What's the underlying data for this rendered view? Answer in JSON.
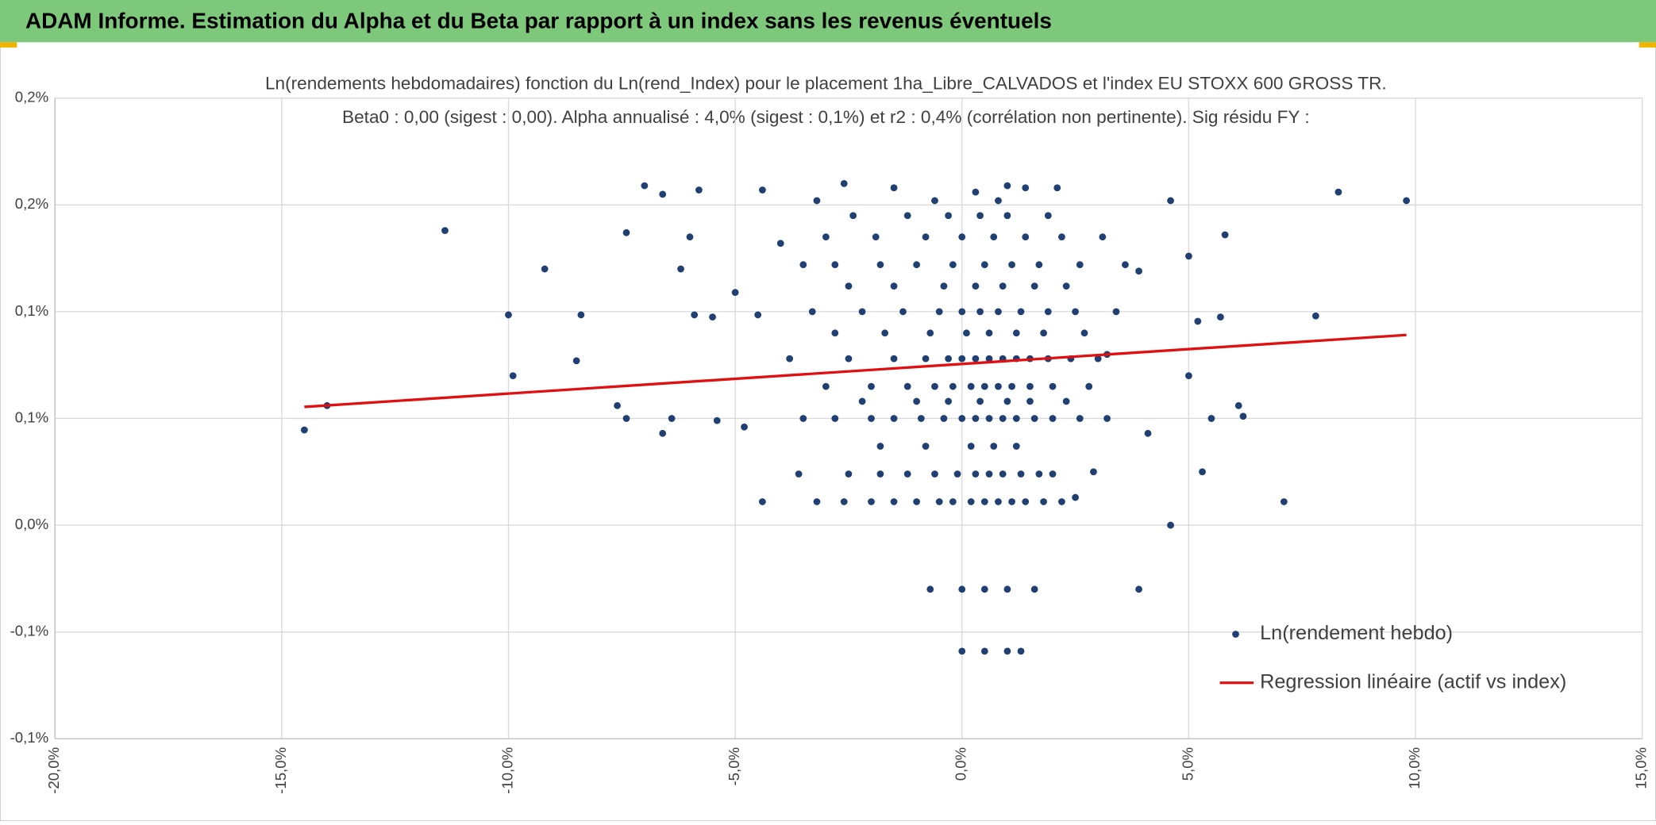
{
  "header": {
    "title": "ADAM Informe. Estimation du Alpha et du Beta par rapport à un index sans les revenus éventuels"
  },
  "chart_data": {
    "type": "scatter",
    "title": "Ln(rendements hebdomadaires) fonction du Ln(rend_Index) pour le placement 1ha_Libre_CALVADOS et l'index EU STOXX 600 GROSS TR.",
    "subtitle": "Beta0 : 0,00 (sigest : 0,00). Alpha annualisé : 4,0% (sigest : 0,1%) et r2 : 0,4% (corrélation non pertinente). Sig résidu FY :",
    "xlim": [
      -20,
      15
    ],
    "xticks": [
      {
        "value": -20,
        "label": "-20,0%"
      },
      {
        "value": -15,
        "label": "-15,0%"
      },
      {
        "value": -10,
        "label": "-10,0%"
      },
      {
        "value": -5,
        "label": "-5,0%"
      },
      {
        "value": 0,
        "label": "0,0%"
      },
      {
        "value": 5,
        "label": "5,0%"
      },
      {
        "value": 10,
        "label": "10,0%"
      },
      {
        "value": 15,
        "label": "15,0%"
      }
    ],
    "ylim": [
      -0.1,
      0.2
    ],
    "yticks": [
      {
        "value": -0.1,
        "label": "-0,1%"
      },
      {
        "value": -0.05,
        "label": "-0,1%"
      },
      {
        "value": 0,
        "label": "0,0%"
      },
      {
        "value": 0.05,
        "label": "0,1%"
      },
      {
        "value": 0.1,
        "label": "0,1%"
      },
      {
        "value": 0.15,
        "label": "0,2%"
      },
      {
        "value": 0.2,
        "label": "0,2%"
      }
    ],
    "grid": true,
    "legend": "right",
    "series": [
      {
        "name": "Ln(rendement hebdo)",
        "color": "#203f73",
        "style": "marker",
        "x": [
          -14.5,
          -14.0,
          -11.4,
          -10.0,
          -9.9,
          -9.2,
          -8.4,
          -8.5,
          -7.6,
          -7.4,
          -7.4,
          -7.0,
          -6.6,
          -6.6,
          -6.4,
          -6.2,
          -6.0,
          -5.9,
          -5.8,
          -5.5,
          -5.4,
          -5.0,
          -4.8,
          -4.5,
          -4.4,
          -4.4,
          -4.0,
          -3.6,
          -3.2,
          -2.6,
          -2.6,
          -1.5,
          -0.7,
          0.0,
          0.5,
          1.0,
          1.6,
          0.0,
          0.5,
          1.0,
          1.3,
          1.4,
          2.1,
          1.0,
          0.3,
          3.9,
          4.6,
          4.6,
          5.0,
          5.0,
          5.2,
          5.3,
          5.5,
          5.7,
          5.8,
          6.1,
          6.2,
          7.1,
          7.8,
          8.3,
          9.8,
          3.9,
          4.1,
          3.2,
          2.5,
          2.9,
          -2.0,
          -1.5,
          -1.0,
          -0.5,
          -0.2,
          0.2,
          0.5,
          0.8,
          1.1,
          1.4,
          1.8,
          2.2,
          -2.5,
          -1.8,
          -1.2,
          -0.6,
          -0.1,
          0.3,
          0.6,
          0.9,
          1.3,
          1.7,
          2.0,
          -1.8,
          -0.8,
          0.2,
          0.7,
          1.2,
          -3.5,
          -2.8,
          -2.0,
          -1.5,
          -0.9,
          -0.4,
          0.0,
          0.3,
          0.6,
          0.9,
          1.2,
          1.6,
          2.0,
          2.6,
          3.2,
          -2.2,
          -1.0,
          -0.3,
          0.4,
          1.0,
          1.5,
          2.3,
          -3.0,
          -2.0,
          -1.2,
          -0.6,
          -0.2,
          0.2,
          0.5,
          0.8,
          1.1,
          1.5,
          2.0,
          2.8,
          -3.8,
          -2.5,
          -1.5,
          -0.8,
          -0.3,
          0.0,
          0.3,
          0.6,
          0.9,
          1.2,
          1.5,
          1.9,
          2.4,
          3.0,
          -2.8,
          -1.7,
          -0.7,
          0.1,
          0.6,
          1.2,
          1.8,
          2.7,
          -3.3,
          -2.2,
          -1.3,
          -0.5,
          0.0,
          0.4,
          0.8,
          1.3,
          1.9,
          2.5,
          3.4,
          -2.5,
          -1.5,
          -0.4,
          0.3,
          0.9,
          1.6,
          2.3,
          -3.5,
          -2.8,
          -1.8,
          -1.0,
          -0.2,
          0.5,
          1.1,
          1.7,
          2.6,
          3.6,
          -3.0,
          -1.9,
          -0.8,
          0.0,
          0.7,
          1.4,
          2.2,
          3.1,
          -2.4,
          -1.2,
          -0.3,
          0.4,
          1.0,
          1.9,
          -3.2,
          -0.6,
          0.8
        ],
        "values": [
          0.0446,
          0.056,
          0.138,
          0.0985,
          0.07,
          0.12,
          0.0985,
          0.077,
          0.056,
          0.137,
          0.05,
          0.159,
          0.155,
          0.043,
          0.05,
          0.12,
          0.135,
          0.0985,
          0.157,
          0.0975,
          0.049,
          0.109,
          0.046,
          0.0985,
          0.157,
          0.011,
          0.132,
          0.024,
          0.011,
          0.16,
          0.011,
          0.158,
          -0.03,
          -0.03,
          -0.03,
          -0.03,
          -0.03,
          -0.059,
          -0.059,
          -0.059,
          -0.059,
          0.158,
          0.158,
          0.159,
          0.156,
          -0.03,
          0,
          0.152,
          0.126,
          0.07,
          0.0955,
          0.025,
          0.05,
          0.0975,
          0.136,
          0.056,
          0.051,
          0.011,
          0.098,
          0.156,
          0.152,
          0.119,
          0.043,
          0.08,
          0.013,
          0.025,
          0.011,
          0.011,
          0.011,
          0.011,
          0.011,
          0.011,
          0.011,
          0.011,
          0.011,
          0.011,
          0.011,
          0.011,
          0.024,
          0.024,
          0.024,
          0.024,
          0.024,
          0.024,
          0.024,
          0.024,
          0.024,
          0.024,
          0.024,
          0.037,
          0.037,
          0.037,
          0.037,
          0.037,
          0.05,
          0.05,
          0.05,
          0.05,
          0.05,
          0.05,
          0.05,
          0.05,
          0.05,
          0.05,
          0.05,
          0.05,
          0.05,
          0.05,
          0.05,
          0.058,
          0.058,
          0.058,
          0.058,
          0.058,
          0.058,
          0.058,
          0.065,
          0.065,
          0.065,
          0.065,
          0.065,
          0.065,
          0.065,
          0.065,
          0.065,
          0.065,
          0.065,
          0.065,
          0.078,
          0.078,
          0.078,
          0.078,
          0.078,
          0.078,
          0.078,
          0.078,
          0.078,
          0.078,
          0.078,
          0.078,
          0.078,
          0.078,
          0.09,
          0.09,
          0.09,
          0.09,
          0.09,
          0.09,
          0.09,
          0.09,
          0.1,
          0.1,
          0.1,
          0.1,
          0.1,
          0.1,
          0.1,
          0.1,
          0.1,
          0.1,
          0.1,
          0.112,
          0.112,
          0.112,
          0.112,
          0.112,
          0.112,
          0.112,
          0.122,
          0.122,
          0.122,
          0.122,
          0.122,
          0.122,
          0.122,
          0.122,
          0.122,
          0.122,
          0.135,
          0.135,
          0.135,
          0.135,
          0.135,
          0.135,
          0.135,
          0.135,
          0.145,
          0.145,
          0.145,
          0.145,
          0.145,
          0.145,
          0.152,
          0.152,
          0.152
        ]
      },
      {
        "name": "Regression linéaire (actif vs index)",
        "color": "#e01010",
        "style": "line",
        "x": [
          -14.5,
          9.8
        ],
        "values": [
          0.0554,
          0.0891
        ]
      }
    ]
  }
}
